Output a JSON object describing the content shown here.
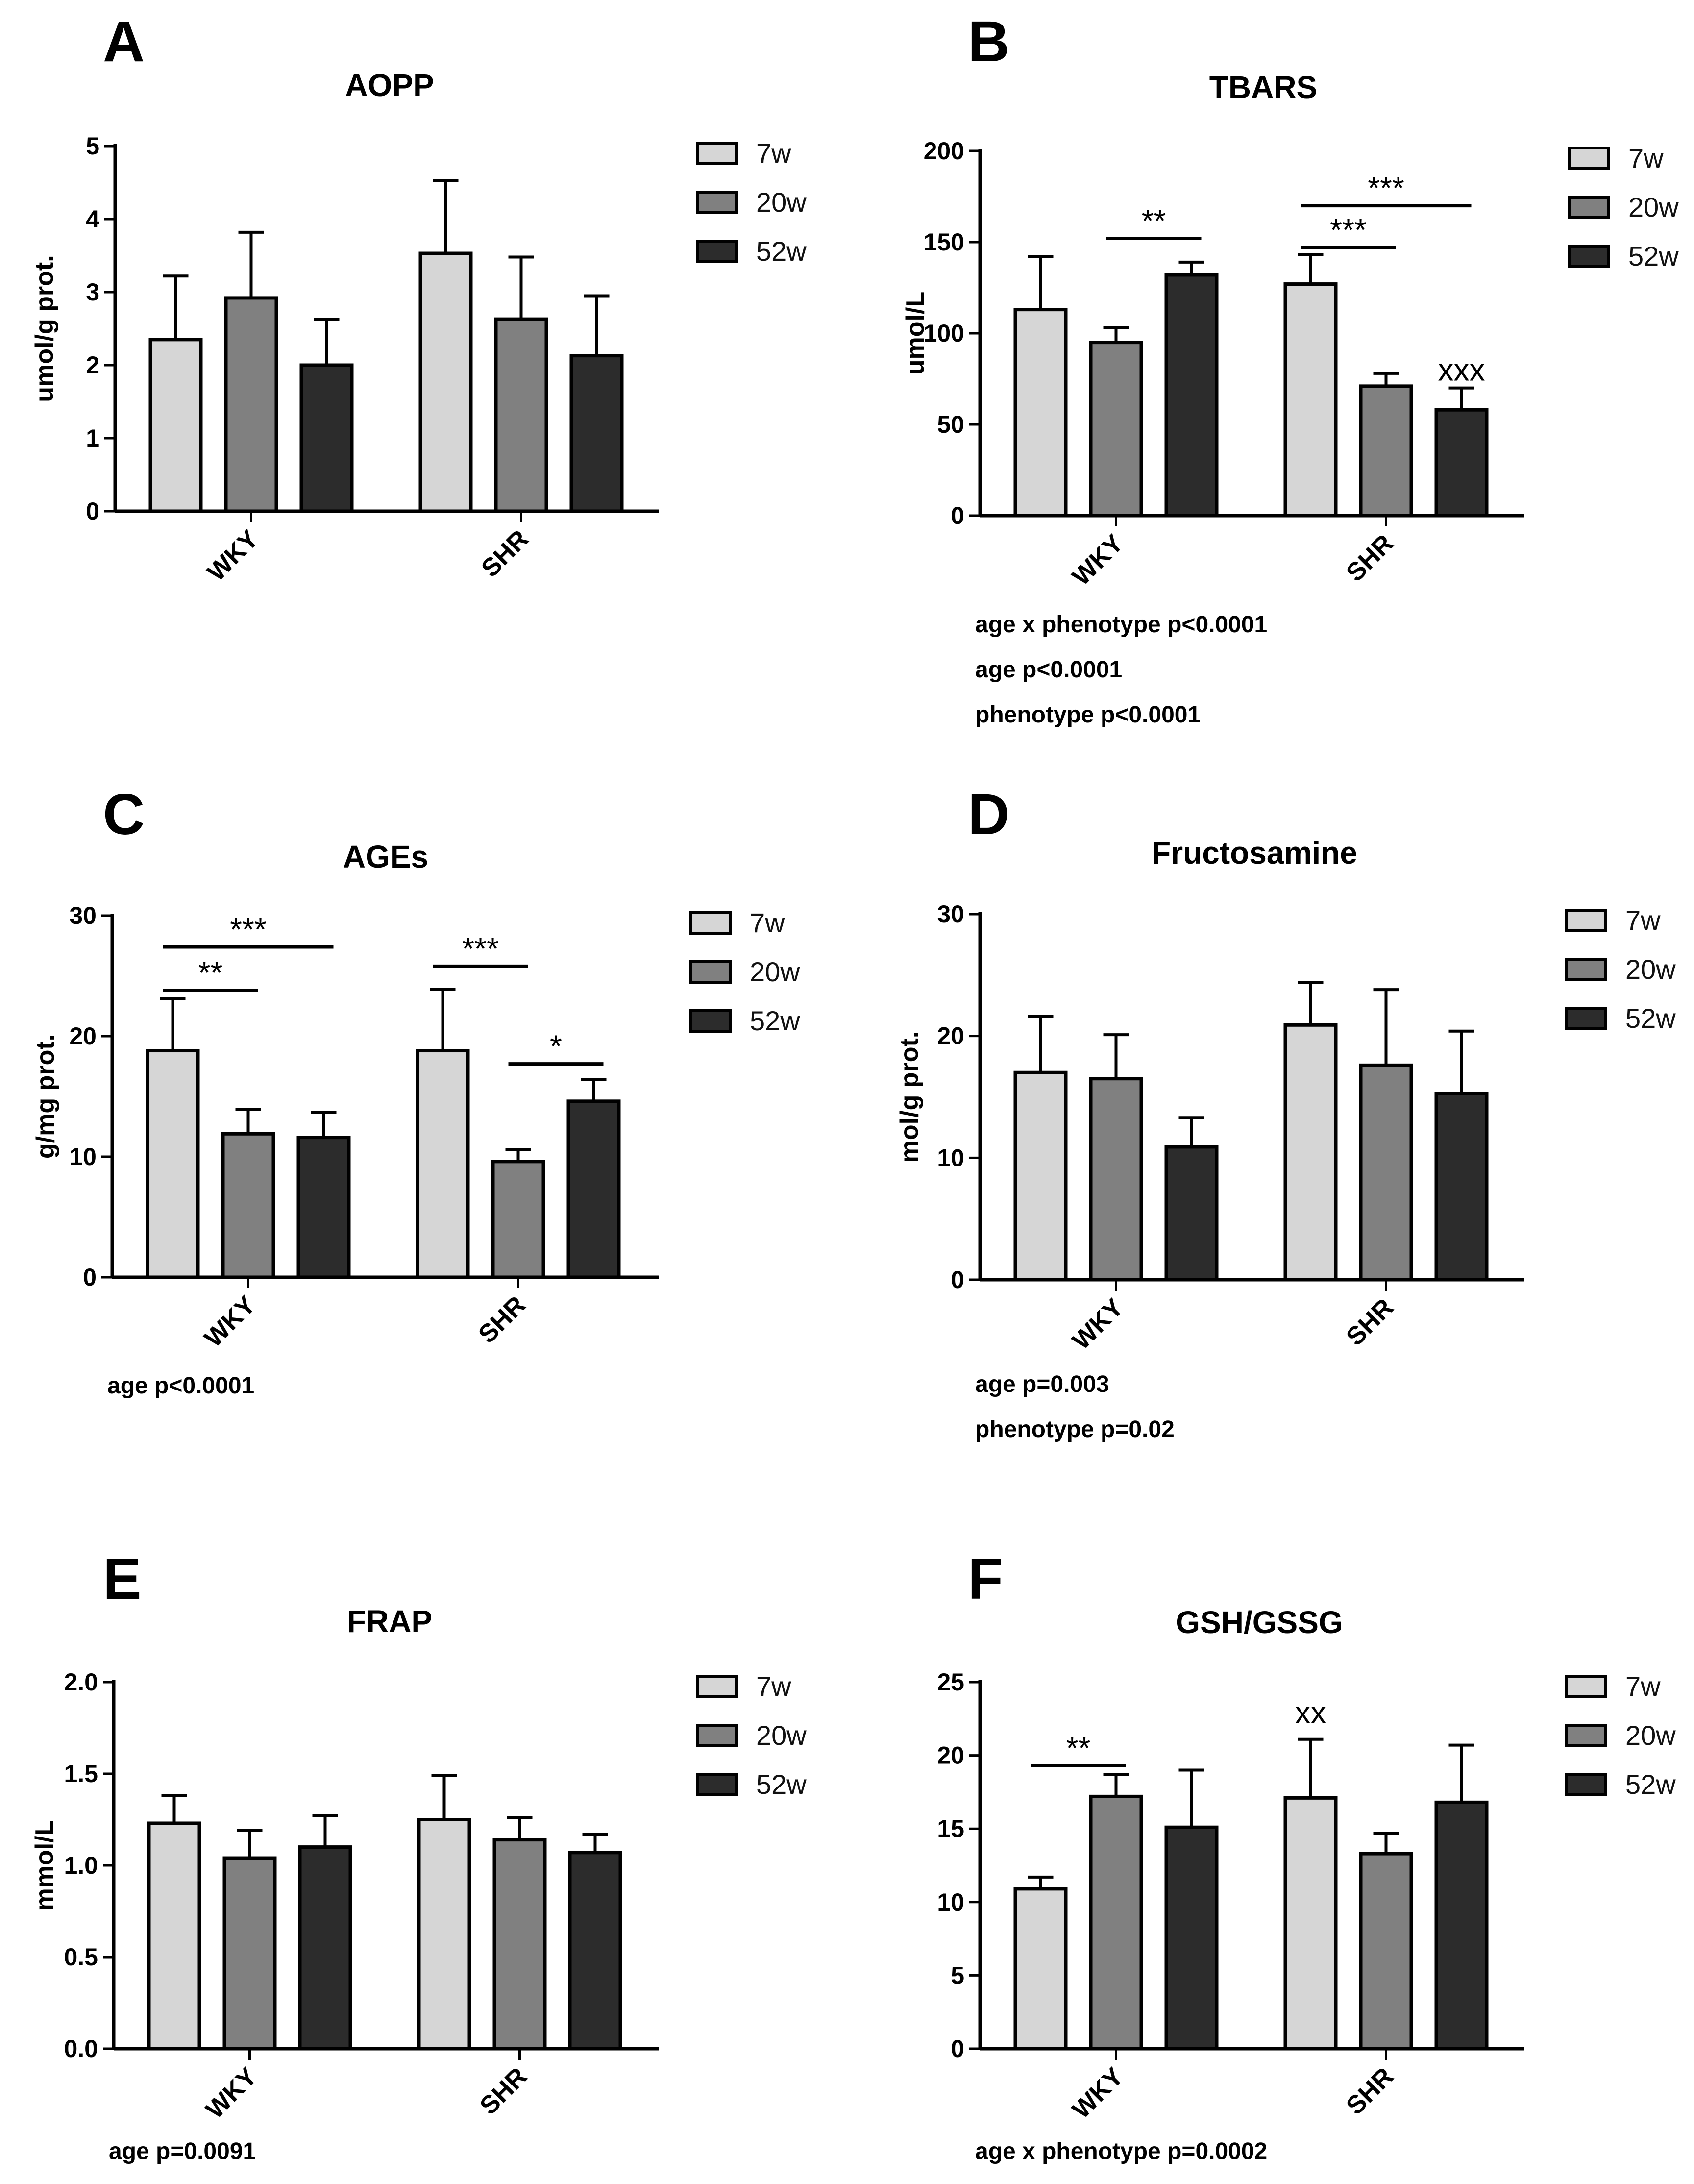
{
  "chart_data": [
    {
      "type": "bar",
      "panel": "A",
      "title": "AOPP",
      "ylabel": "umol/g prot.",
      "xlabel": "",
      "categories": [
        "WKY",
        "SHR"
      ],
      "ylim": [
        0,
        5
      ],
      "yticks": [
        0,
        1,
        2,
        3,
        4,
        5
      ],
      "ytick_labels": [
        "0",
        "1",
        "2",
        "3",
        "4",
        "5"
      ],
      "legend": [
        "7w",
        "20w",
        "52w"
      ],
      "series": [
        {
          "name": "7w",
          "values": [
            2.35,
            3.53
          ],
          "errors": [
            0.87,
            1.0
          ]
        },
        {
          "name": "20w",
          "values": [
            2.92,
            2.63
          ],
          "errors": [
            0.9,
            0.85
          ]
        },
        {
          "name": "52w",
          "values": [
            2.0,
            2.13
          ],
          "errors": [
            0.63,
            0.82
          ]
        }
      ],
      "brackets": [],
      "markers": [],
      "notes": []
    },
    {
      "type": "bar",
      "panel": "B",
      "title": "TBARS",
      "ylabel": "umol/L",
      "xlabel": "",
      "categories": [
        "WKY",
        "SHR"
      ],
      "ylim": [
        0,
        200
      ],
      "yticks": [
        0,
        50,
        100,
        150,
        200
      ],
      "ytick_labels": [
        "0",
        "50",
        "100",
        "150",
        "200"
      ],
      "legend": [
        "7w",
        "20w",
        "52w"
      ],
      "series": [
        {
          "name": "7w",
          "values": [
            113,
            127
          ],
          "errors": [
            29,
            16
          ]
        },
        {
          "name": "20w",
          "values": [
            95,
            71
          ],
          "errors": [
            8,
            7
          ]
        },
        {
          "name": "52w",
          "values": [
            132,
            58
          ],
          "errors": [
            7,
            12
          ]
        }
      ],
      "brackets": [
        {
          "label": "**",
          "group": 0,
          "from": 1,
          "to": 2,
          "y": 152
        },
        {
          "label": "***",
          "group": 1,
          "from": 0,
          "to": 1,
          "y": 147
        },
        {
          "label": "***",
          "group": 1,
          "from": 0,
          "to": 2,
          "y": 170
        }
      ],
      "markers": [
        {
          "label": "xxx",
          "group": 1,
          "series": 2,
          "y": 74
        }
      ],
      "notes": [
        "age x phenotype p<0.0001",
        "age p<0.0001",
        "phenotype p<0.0001"
      ]
    },
    {
      "type": "bar",
      "panel": "C",
      "title": "AGEs",
      "ylabel": "g/mg prot.",
      "xlabel": "",
      "categories": [
        "WKY",
        "SHR"
      ],
      "ylim": [
        0,
        30
      ],
      "yticks": [
        0,
        10,
        20,
        30
      ],
      "ytick_labels": [
        "0",
        "10",
        "20",
        "30"
      ],
      "legend": [
        "7w",
        "20w",
        "52w"
      ],
      "series": [
        {
          "name": "7w",
          "values": [
            18.8,
            18.8
          ],
          "errors": [
            4.3,
            5.1
          ]
        },
        {
          "name": "20w",
          "values": [
            11.9,
            9.6
          ],
          "errors": [
            2.0,
            1.0
          ]
        },
        {
          "name": "52w",
          "values": [
            11.6,
            14.6
          ],
          "errors": [
            2.1,
            1.8
          ]
        }
      ],
      "brackets": [
        {
          "label": "***",
          "group": 0,
          "from": 0,
          "to": 2,
          "y": 27.4
        },
        {
          "label": "**",
          "group": 0,
          "from": 0,
          "to": 1,
          "y": 23.8
        },
        {
          "label": "***",
          "group": 1,
          "from": 0,
          "to": 1,
          "y": 25.8
        },
        {
          "label": "*",
          "group": 1,
          "from": 1,
          "to": 2,
          "y": 17.7
        }
      ],
      "markers": [],
      "notes": [
        "age p<0.0001"
      ]
    },
    {
      "type": "bar",
      "panel": "D",
      "title": "Fructosamine",
      "ylabel": "mol/g prot.",
      "xlabel": "",
      "categories": [
        "WKY",
        "SHR"
      ],
      "ylim": [
        0,
        30
      ],
      "yticks": [
        0,
        10,
        20,
        30
      ],
      "ytick_labels": [
        "0",
        "10",
        "20",
        "30"
      ],
      "legend": [
        "7w",
        "20w",
        "52w"
      ],
      "series": [
        {
          "name": "7w",
          "values": [
            17.0,
            20.9
          ],
          "errors": [
            4.6,
            3.5
          ]
        },
        {
          "name": "20w",
          "values": [
            16.5,
            17.6
          ],
          "errors": [
            3.6,
            6.2
          ]
        },
        {
          "name": "52w",
          "values": [
            10.9,
            15.3
          ],
          "errors": [
            2.4,
            5.1
          ]
        }
      ],
      "brackets": [],
      "markers": [],
      "notes": [
        "age p=0.003",
        "phenotype p=0.02"
      ]
    },
    {
      "type": "bar",
      "panel": "E",
      "title": "FRAP",
      "ylabel": "mmol/L",
      "xlabel": "",
      "categories": [
        "WKY",
        "SHR"
      ],
      "ylim": [
        0,
        2.0
      ],
      "yticks": [
        0,
        0.5,
        1.0,
        1.5,
        2.0
      ],
      "ytick_labels": [
        "0.0",
        "0.5",
        "1.0",
        "1.5",
        "2.0"
      ],
      "legend": [
        "7w",
        "20w",
        "52w"
      ],
      "series": [
        {
          "name": "7w",
          "values": [
            1.23,
            1.25
          ],
          "errors": [
            0.15,
            0.24
          ]
        },
        {
          "name": "20w",
          "values": [
            1.04,
            1.14
          ],
          "errors": [
            0.15,
            0.12
          ]
        },
        {
          "name": "52w",
          "values": [
            1.1,
            1.07
          ],
          "errors": [
            0.17,
            0.1
          ]
        }
      ],
      "brackets": [],
      "markers": [],
      "notes": [
        "age p=0.0091"
      ]
    },
    {
      "type": "bar",
      "panel": "F",
      "title": "GSH/GSSG",
      "ylabel": "",
      "xlabel": "",
      "categories": [
        "WKY",
        "SHR"
      ],
      "ylim": [
        0,
        25
      ],
      "yticks": [
        0,
        5,
        10,
        15,
        20,
        25
      ],
      "ytick_labels": [
        "0",
        "5",
        "10",
        "15",
        "20",
        "25"
      ],
      "legend": [
        "7w",
        "20w",
        "52w"
      ],
      "series": [
        {
          "name": "7w",
          "values": [
            10.9,
            17.1
          ],
          "errors": [
            0.8,
            4.0
          ]
        },
        {
          "name": "20w",
          "values": [
            17.2,
            13.3
          ],
          "errors": [
            1.5,
            1.4
          ]
        },
        {
          "name": "52w",
          "values": [
            15.1,
            16.8
          ],
          "errors": [
            3.9,
            3.9
          ]
        }
      ],
      "brackets": [
        {
          "label": "**",
          "group": 0,
          "from": 0,
          "to": 1,
          "y": 19.3
        }
      ],
      "markers": [
        {
          "label": "xx",
          "group": 1,
          "series": 0,
          "y": 22.2
        }
      ],
      "notes": [
        "age x phenotype p=0.0002"
      ]
    }
  ],
  "colors": {
    "7w": "#d6d6d6",
    "20w": "#808080",
    "52w": "#2c2c2c"
  }
}
